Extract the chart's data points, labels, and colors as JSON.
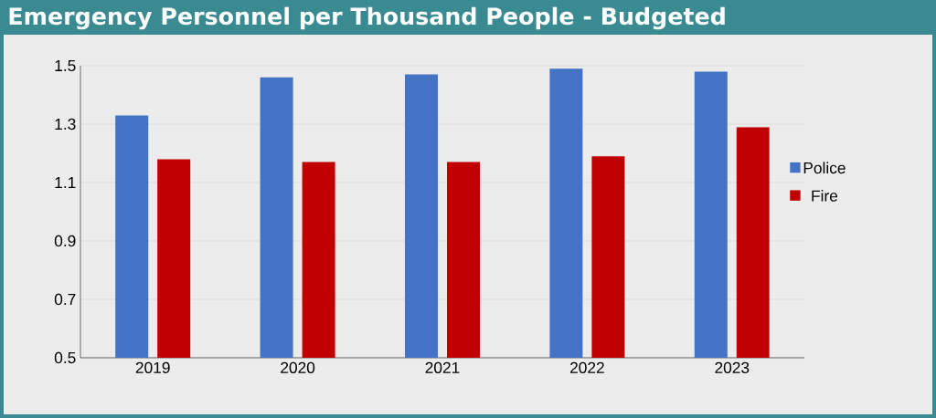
{
  "chart_data": {
    "type": "bar",
    "title": "Emergency Personnel per Thousand People - Budgeted",
    "categories": [
      "2019",
      "2020",
      "2021",
      "2022",
      "2023"
    ],
    "series": [
      {
        "name": "Police",
        "color": "#4472c4",
        "values": [
          1.33,
          1.46,
          1.47,
          1.49,
          1.48
        ]
      },
      {
        "name": "Fire",
        "color": "#c00000",
        "values": [
          1.18,
          1.17,
          1.17,
          1.19,
          1.29
        ]
      }
    ],
    "ylim": [
      0.5,
      1.5
    ],
    "yticks": [
      0.5,
      0.7,
      0.9,
      1.1,
      1.3,
      1.5
    ],
    "grid": "y",
    "legend": "right"
  }
}
